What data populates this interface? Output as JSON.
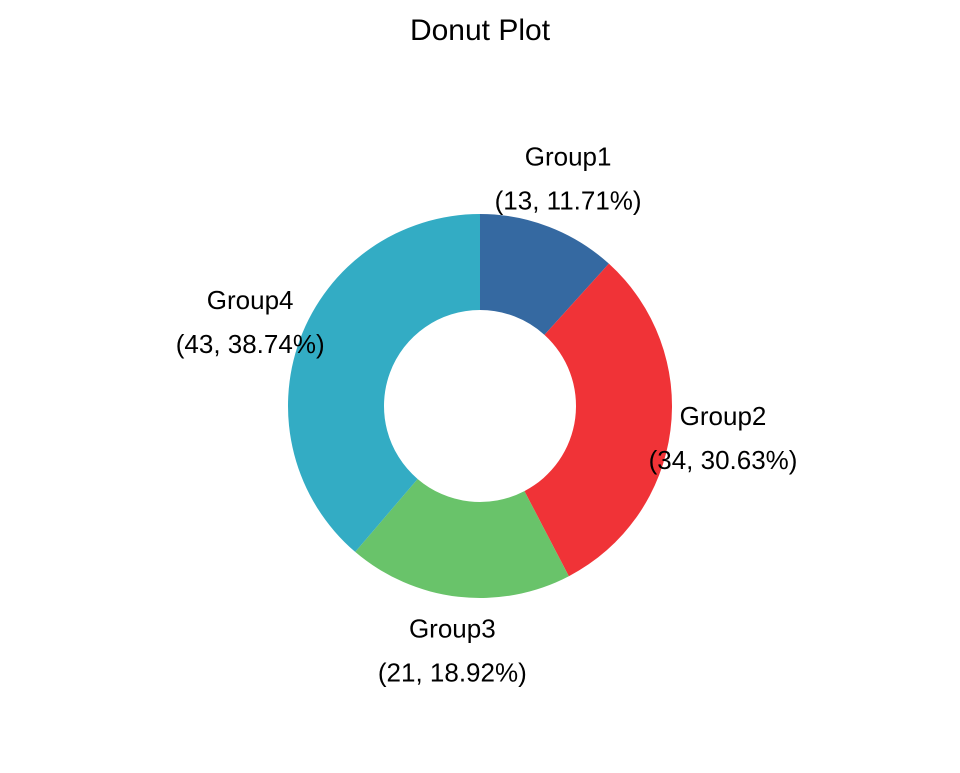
{
  "chart_data": {
    "type": "pie",
    "title": "Donut Plot",
    "categories": [
      "Group1",
      "Group2",
      "Group3",
      "Group4"
    ],
    "values": [
      13,
      34,
      21,
      43
    ],
    "percentages": [
      11.71,
      30.63,
      18.92,
      38.74
    ],
    "labels": [
      {
        "name": "Group1",
        "detail": "(13, 11.71%)"
      },
      {
        "name": "Group2",
        "detail": "(34, 30.63%)"
      },
      {
        "name": "Group3",
        "detail": "(21, 18.92%)"
      },
      {
        "name": "Group4",
        "detail": "(43, 38.74%)"
      }
    ],
    "colors": [
      "#3569A1",
      "#F03337",
      "#69C36A",
      "#33ACC4"
    ],
    "hole": true,
    "start_angle": "top",
    "direction": "clockwise",
    "grid": false,
    "legend": "none"
  }
}
